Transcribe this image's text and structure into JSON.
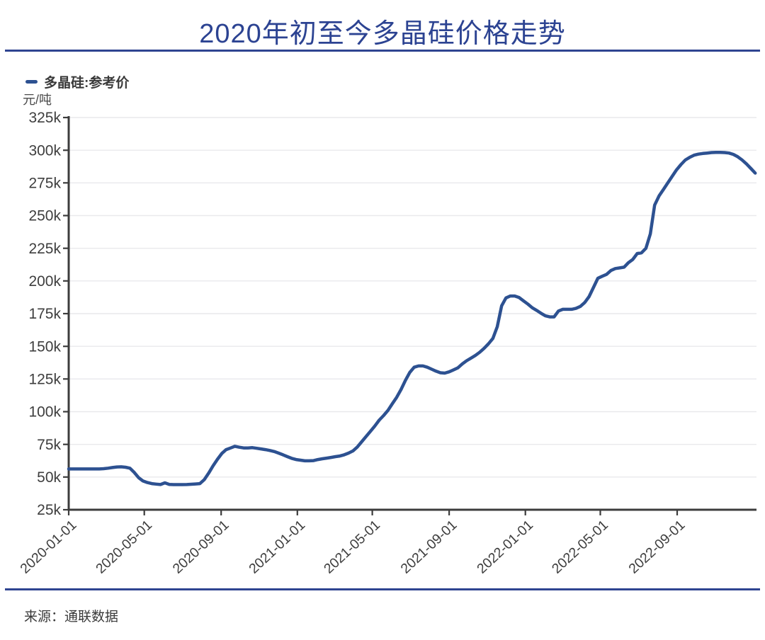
{
  "title": "2020年初至今多晶硅价格走势",
  "legend": {
    "label": "多晶硅:参考价"
  },
  "y_axis_unit": "元/吨",
  "source": "来源：通联数据",
  "colors": {
    "title": "#2c4392",
    "rule": "#2e4491",
    "line": "#2d5191",
    "grid": "#e9e9ec",
    "axis": "#3c3c3c",
    "tick_text": "#3e3e3e"
  },
  "chart_data": {
    "type": "line",
    "title": "2020年初至今多晶硅价格走势",
    "ylabel": "元/吨",
    "grid": "horizontal",
    "legend_position": "top-left",
    "ylim": [
      25,
      325
    ],
    "y_value_scale": "thousand yuan per ton (k)",
    "xlim": [
      "2020-01-01",
      "2023-01-06"
    ],
    "x_ticks": [
      "2020-01-01",
      "2020-05-01",
      "2020-09-01",
      "2021-01-01",
      "2021-05-01",
      "2021-09-01",
      "2022-01-01",
      "2022-05-01",
      "2022-09-01"
    ],
    "y_ticks": [
      {
        "value": 325,
        "label": "325k"
      },
      {
        "value": 300,
        "label": "300k"
      },
      {
        "value": 275,
        "label": "275k"
      },
      {
        "value": 250,
        "label": "250k"
      },
      {
        "value": 225,
        "label": "225k"
      },
      {
        "value": 200,
        "label": "200k"
      },
      {
        "value": 175,
        "label": "175k"
      },
      {
        "value": 150,
        "label": "150k"
      },
      {
        "value": 125,
        "label": "125k"
      },
      {
        "value": 100,
        "label": "100k"
      },
      {
        "value": 75,
        "label": "75k"
      },
      {
        "value": 50,
        "label": "50k"
      },
      {
        "value": 25,
        "label": "25k"
      }
    ],
    "series": [
      {
        "name": "多晶硅:参考价",
        "x_start": "2020-01-01",
        "interval_days": 7,
        "values": [
          56.2,
          56.2,
          56.2,
          56.2,
          56.2,
          56.2,
          56.2,
          56.2,
          56.4,
          56.8,
          57.3,
          57.7,
          57.8,
          57.5,
          56.8,
          53.5,
          49.5,
          47.0,
          45.8,
          45.0,
          44.6,
          44.3,
          45.6,
          44.4,
          44.2,
          44.2,
          44.2,
          44.3,
          44.5,
          44.7,
          45.0,
          48.0,
          53.0,
          58.5,
          63.5,
          68.0,
          71.0,
          72.2,
          73.5,
          72.8,
          72.3,
          72.3,
          72.5,
          72.0,
          71.5,
          71.0,
          70.3,
          69.5,
          68.3,
          67.0,
          65.6,
          64.3,
          63.4,
          62.9,
          62.4,
          62.4,
          62.6,
          63.4,
          64.0,
          64.5,
          65.0,
          65.6,
          66.1,
          67.0,
          68.3,
          70.0,
          73.0,
          77.0,
          81.0,
          85.0,
          89.0,
          93.5,
          97.0,
          101.0,
          106.0,
          111.0,
          117.0,
          124.0,
          130.0,
          134.0,
          135.0,
          135.0,
          134.0,
          132.5,
          131.0,
          129.8,
          129.5,
          130.5,
          132.0,
          133.5,
          136.5,
          139.0,
          141.0,
          143.0,
          145.5,
          148.5,
          152.0,
          156.0,
          165.0,
          181.0,
          187.0,
          188.5,
          188.5,
          187.3,
          184.8,
          182.3,
          179.5,
          177.5,
          175.3,
          173.3,
          172.5,
          172.5,
          177.0,
          178.3,
          178.3,
          178.3,
          179.0,
          180.5,
          183.5,
          188.0,
          195.0,
          202.0,
          203.6,
          205.0,
          208.0,
          209.5,
          210.0,
          210.5,
          214.0,
          216.5,
          221.0,
          221.5,
          225.0,
          236.0,
          258.0,
          265.0,
          270.0,
          275.0,
          280.0,
          285.0,
          289.0,
          292.5,
          294.5,
          296.2,
          297.0,
          297.5,
          297.8,
          298.2,
          298.3,
          298.3,
          298.2,
          297.8,
          296.8,
          295.0,
          292.5,
          289.5,
          286.0,
          282.5
        ]
      }
    ]
  }
}
